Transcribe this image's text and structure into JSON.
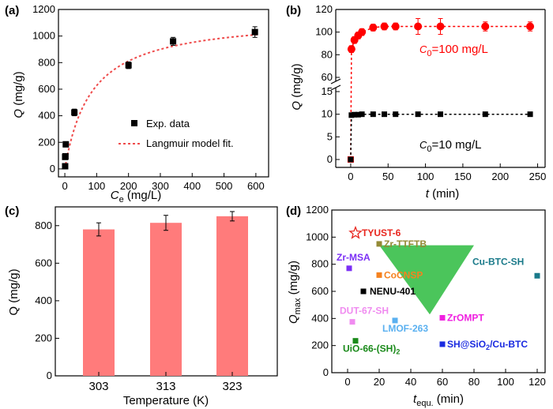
{
  "chart_data": [
    {
      "panel": "(a)",
      "type": "scatter",
      "xlabel": "C",
      "xlabel_sub": "e",
      "xlabel_unit": " (mg/L)",
      "ylabel": "Q",
      "ylabel_unit": " (mg/g)",
      "xlim": [
        -20,
        640
      ],
      "ylim": [
        -60,
        1200
      ],
      "xticks": [
        0,
        100,
        200,
        300,
        400,
        500,
        600
      ],
      "yticks": [
        0,
        200,
        400,
        600,
        800,
        1000,
        1200
      ],
      "series": [
        {
          "name": "Exp. data",
          "x": [
            1,
            1,
            2,
            3,
            30,
            200,
            340,
            597
          ],
          "y": [
            20,
            90,
            95,
            185,
            425,
            780,
            960,
            1030
          ],
          "err": [
            10,
            15,
            15,
            20,
            25,
            25,
            30,
            40
          ]
        },
        {
          "name": "Langmuir model fit.",
          "qmax": 1150,
          "K": 0.012,
          "xmin": 0,
          "xmax": 605
        }
      ],
      "legend": [
        "Exp. data",
        "Langmuir model fit."
      ],
      "legend_position": "lower-right"
    },
    {
      "panel": "(b)",
      "type": "line",
      "xlabel": "t",
      "xlabel_unit": " (min)",
      "ylabel": "Q",
      "ylabel_unit": " (mg/g)",
      "xlim": [
        -20,
        260
      ],
      "xticks": [
        0,
        50,
        100,
        150,
        200,
        250
      ],
      "yticks_lower": [
        0,
        5,
        10,
        15
      ],
      "yticks_upper": [
        60,
        80,
        100,
        120
      ],
      "axis_break": "between 15 and 50",
      "series": [
        {
          "name": "C0=100 mg/L",
          "annotation": "=100 mg/L",
          "color": "#ff0000",
          "x": [
            0,
            1,
            5,
            10,
            15,
            30,
            45,
            60,
            90,
            120,
            180,
            240
          ],
          "y": [
            0,
            85,
            93,
            97,
            100,
            104,
            105,
            105,
            105,
            105,
            105,
            105
          ],
          "err": [
            0,
            3,
            3,
            3,
            3,
            3,
            3,
            3,
            7,
            7,
            4,
            4
          ]
        },
        {
          "name": "C0=10 mg/L",
          "annotation": "=10 mg/L",
          "color": "#000000",
          "x": [
            0,
            1,
            5,
            10,
            15,
            30,
            45,
            60,
            90,
            120,
            180,
            240
          ],
          "y": [
            0,
            9.8,
            9.9,
            9.9,
            10,
            10,
            10,
            10,
            10,
            10,
            10,
            10
          ]
        }
      ]
    },
    {
      "panel": "(c)",
      "type": "bar",
      "xlabel": "Temperature (K)",
      "ylabel": "Q (mg/g)",
      "categories": [
        "303",
        "313",
        "323"
      ],
      "values": [
        780,
        815,
        850
      ],
      "err": [
        35,
        40,
        25
      ],
      "ylim": [
        0,
        900
      ],
      "yticks": [
        0,
        200,
        400,
        600,
        800
      ],
      "color": "#ff7b7b"
    },
    {
      "panel": "(d)",
      "type": "scatter",
      "xlabel": "t",
      "xlabel_sub": "equ.",
      "xlabel_unit": " (min)",
      "ylabel": "Q",
      "ylabel_sub": "max",
      "ylabel_unit": " (mg/g)",
      "xlim": [
        -10,
        125
      ],
      "ylim": [
        0,
        1200
      ],
      "xticks": [
        0,
        20,
        40,
        60,
        80,
        100,
        120
      ],
      "yticks": [
        0,
        200,
        400,
        600,
        800,
        1000,
        1200
      ],
      "points": [
        {
          "name": "TYUST-6",
          "x": 5,
          "y": 1030,
          "color": "#e8261e",
          "marker": "star"
        },
        {
          "name": "Zr-TTFTB",
          "x": 20,
          "y": 950,
          "color": "#948a36"
        },
        {
          "name": "Zr-MSA",
          "x": 1,
          "y": 770,
          "color": "#7b2ff5"
        },
        {
          "name": "CoCNSP",
          "x": 20,
          "y": 720,
          "color": "#f5821f"
        },
        {
          "name": "NENU-401",
          "x": 10,
          "y": 600,
          "color": "#000000"
        },
        {
          "name": "Cu-BTC-SH",
          "x": 120,
          "y": 715,
          "color": "#1a7a8a"
        },
        {
          "name": "DUT-67-SH",
          "x": 3,
          "y": 375,
          "color": "#f08cf0"
        },
        {
          "name": "LMOF-263",
          "x": 30,
          "y": 385,
          "color": "#5ab0f0"
        },
        {
          "name": "ZrOMPT",
          "x": 60,
          "y": 405,
          "color": "#f020e0"
        },
        {
          "name": "UiO-66-(SH)",
          "label_sub": "2",
          "x": 5,
          "y": 235,
          "color": "#1a8a1a"
        },
        {
          "name": "SH@SiO",
          "label_sub": "2",
          "label_tail": "/Cu-BTC",
          "x": 60,
          "y": 210,
          "color": "#1a2ae0"
        }
      ]
    }
  ]
}
